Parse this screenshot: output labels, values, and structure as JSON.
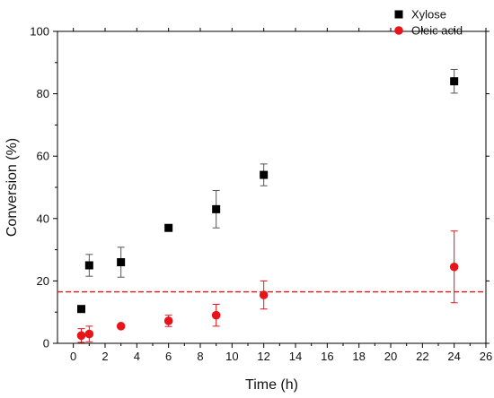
{
  "chart_data": {
    "type": "scatter",
    "title": "",
    "xlabel": "Time (h)",
    "ylabel": "Conversion (%)",
    "xlim": [
      -1,
      26
    ],
    "ylim": [
      0,
      100
    ],
    "x_ticks": [
      0,
      2,
      4,
      6,
      8,
      10,
      12,
      14,
      16,
      18,
      20,
      22,
      24,
      26
    ],
    "y_ticks": [
      0,
      20,
      40,
      60,
      80,
      100
    ],
    "grid": false,
    "legend_position": "top-right",
    "series": [
      {
        "name": "Xylose",
        "marker": "square",
        "color": "#000000",
        "error_color": "#555555",
        "points": [
          {
            "x": 0.5,
            "y": 11,
            "err": 0
          },
          {
            "x": 1,
            "y": 25,
            "err": 3.5
          },
          {
            "x": 3,
            "y": 26,
            "err": 4.8
          },
          {
            "x": 6,
            "y": 37,
            "err": 0
          },
          {
            "x": 9,
            "y": 43,
            "err": 6
          },
          {
            "x": 12,
            "y": 54,
            "err": 3.5
          },
          {
            "x": 24,
            "y": 84,
            "err": 3.8
          }
        ]
      },
      {
        "name": "Oleic acid",
        "marker": "circle",
        "color": "#e8141a",
        "error_color": "#e8141a",
        "points": [
          {
            "x": 0.5,
            "y": 2.5,
            "err": 2.2
          },
          {
            "x": 1,
            "y": 3,
            "err": 2.5
          },
          {
            "x": 3,
            "y": 5.5,
            "err": 0
          },
          {
            "x": 6,
            "y": 7.2,
            "err": 1.8
          },
          {
            "x": 9,
            "y": 9,
            "err": 3.5
          },
          {
            "x": 12,
            "y": 15.5,
            "err": 4.5
          },
          {
            "x": 24,
            "y": 24.5,
            "err": 11.5
          }
        ]
      }
    ],
    "reference_lines": [
      {
        "y": 16.5,
        "style": "dashed",
        "color": "#e8141a"
      }
    ]
  }
}
